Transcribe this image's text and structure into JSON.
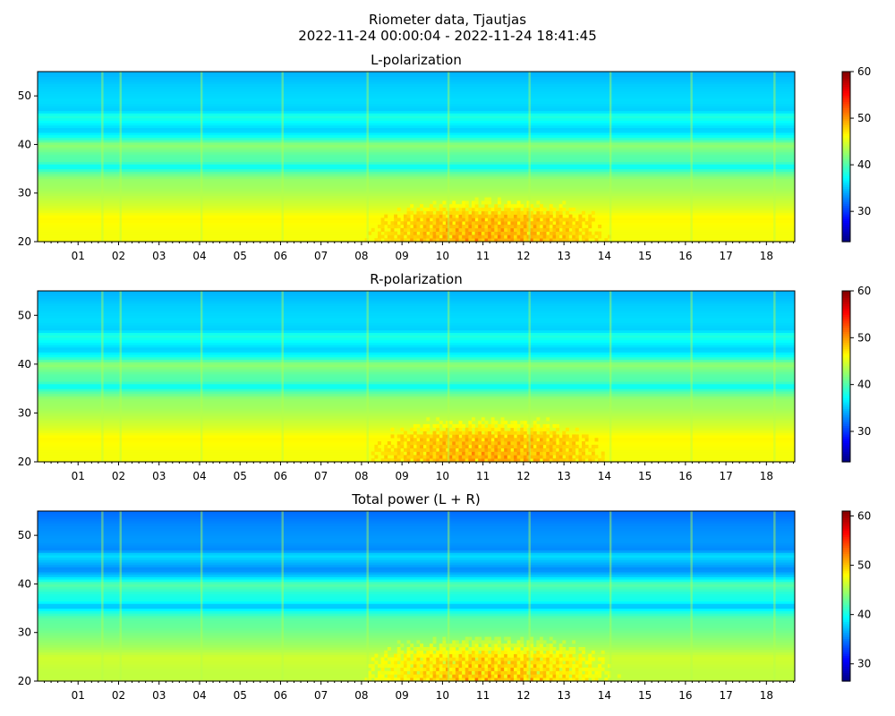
{
  "figure": {
    "title_line1": "Riometer data, Tjautjas",
    "title_line2": "2022-11-24 00:00:04 - 2022-11-24 18:41:45"
  },
  "colormap": "jet",
  "chart_data": [
    {
      "type": "heatmap",
      "title": "L-polarization",
      "xlabel": "",
      "ylabel": "",
      "xlim": [
        0,
        18.7
      ],
      "ylim": [
        20,
        55
      ],
      "x_ticks": [
        "01",
        "02",
        "03",
        "04",
        "05",
        "06",
        "07",
        "08",
        "09",
        "10",
        "11",
        "12",
        "13",
        "14",
        "15",
        "16",
        "17",
        "18"
      ],
      "y_ticks": [
        20,
        30,
        40,
        50
      ],
      "colorbar": {
        "range": [
          23.5,
          60
        ],
        "ticks": [
          30,
          40,
          50,
          60
        ]
      }
    },
    {
      "type": "heatmap",
      "title": "R-polarization",
      "xlabel": "",
      "ylabel": "",
      "xlim": [
        0,
        18.7
      ],
      "ylim": [
        20,
        55
      ],
      "x_ticks": [
        "01",
        "02",
        "03",
        "04",
        "05",
        "06",
        "07",
        "08",
        "09",
        "10",
        "11",
        "12",
        "13",
        "14",
        "15",
        "16",
        "17",
        "18"
      ],
      "y_ticks": [
        20,
        30,
        40,
        50
      ],
      "colorbar": {
        "range": [
          23.5,
          60
        ],
        "ticks": [
          30,
          40,
          50,
          60
        ]
      }
    },
    {
      "type": "heatmap",
      "title": "Total power (L + R)",
      "xlabel": "",
      "ylabel": "",
      "xlim": [
        0,
        18.7
      ],
      "ylim": [
        20,
        55
      ],
      "x_ticks": [
        "01",
        "02",
        "03",
        "04",
        "05",
        "06",
        "07",
        "08",
        "09",
        "10",
        "11",
        "12",
        "13",
        "14",
        "15",
        "16",
        "17",
        "18"
      ],
      "y_ticks": [
        20,
        30,
        40,
        50
      ],
      "colorbar": {
        "range": [
          26.5,
          61
        ],
        "ticks": [
          30,
          40,
          50,
          60
        ]
      }
    }
  ],
  "profile": {
    "y_levels": [
      20,
      22,
      25,
      27,
      29,
      31,
      33,
      34.5,
      35.5,
      36.5,
      38,
      40,
      41.5,
      43,
      44.5,
      46,
      47,
      49,
      52,
      55
    ],
    "intensity": [
      46,
      46,
      46.5,
      45,
      44,
      43,
      42.5,
      40,
      37,
      40,
      40.5,
      42.5,
      38,
      35.5,
      37,
      38.5,
      35.5,
      36,
      35.5,
      34.5
    ],
    "time_spikes": [
      1.6,
      2.05,
      4.05,
      6.05,
      8.15,
      10.15,
      12.15,
      14.15,
      16.15,
      18.2
    ],
    "enhancement": {
      "x_start": 7.2,
      "x_end": 15.0,
      "x_center": 11.3,
      "y_top": 30,
      "peak": 4.5
    }
  }
}
